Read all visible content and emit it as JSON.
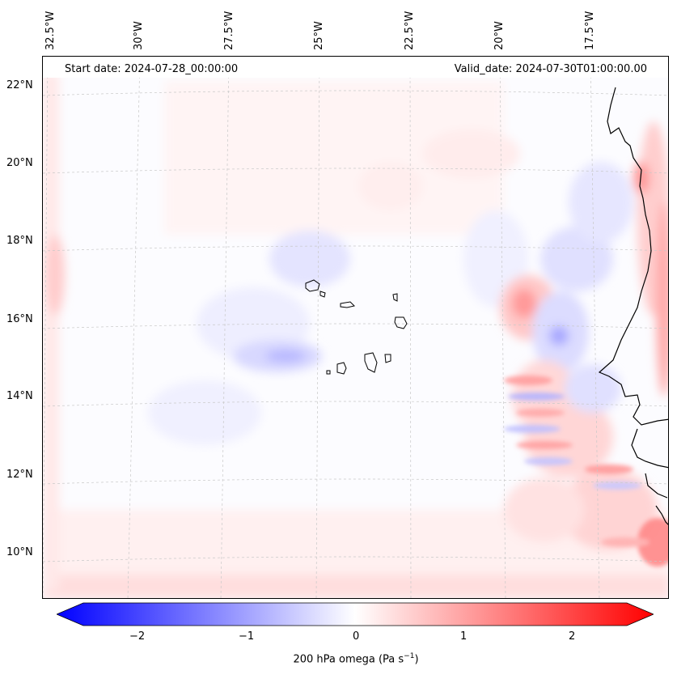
{
  "map": {
    "start_label": "Start date: 2024-07-28_00:00:00",
    "valid_label": "Valid_date: 2024-07-30T01:00:00.00",
    "longitude_labels": [
      "32.5°W",
      "30°W",
      "27.5°W",
      "25°W",
      "22.5°W",
      "20°W",
      "17.5°W"
    ],
    "latitude_labels": [
      "22°N",
      "20°N",
      "18°N",
      "16°N",
      "14°N",
      "12°N",
      "10°N"
    ]
  },
  "colorbar": {
    "ticks": [
      "−2",
      "−1",
      "0",
      "1",
      "2"
    ],
    "label_prefix": "200 hPa omega (Pa s",
    "label_exp": "−1",
    "label_suffix": ")",
    "min": -2.6,
    "max": 2.6,
    "colors": {
      "negative": "#0000ff",
      "zero": "#ffffff",
      "positive": "#ff0000"
    }
  }
}
